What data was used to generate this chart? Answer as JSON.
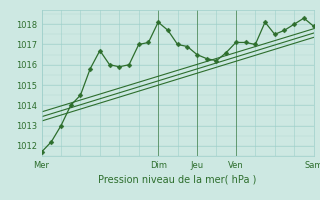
{
  "title": "",
  "xlabel": "Pression niveau de la mer( hPa )",
  "background_color": "#cde8e2",
  "plot_bg_color": "#cde8e2",
  "grid_color": "#9ecfca",
  "text_color": "#2d6e2d",
  "line_color": "#2d6e2d",
  "ylim": [
    1011.5,
    1018.7
  ],
  "xlim": [
    0,
    84
  ],
  "series1_x": [
    0,
    3,
    6,
    9,
    12,
    15,
    18,
    21,
    24,
    27,
    30,
    33,
    36,
    39,
    42,
    45,
    48,
    51,
    54,
    57,
    60,
    63,
    66,
    69,
    72,
    75,
    78,
    81,
    84
  ],
  "series1_y": [
    1011.7,
    1012.2,
    1013.0,
    1014.0,
    1014.5,
    1015.8,
    1016.7,
    1016.0,
    1015.9,
    1016.0,
    1017.0,
    1017.1,
    1018.1,
    1017.7,
    1017.0,
    1016.9,
    1016.5,
    1016.3,
    1016.2,
    1016.6,
    1017.1,
    1017.1,
    1017.0,
    1018.1,
    1017.5,
    1017.7,
    1018.0,
    1018.3,
    1017.9
  ],
  "series2_y": [
    1013.5,
    1014.2,
    1015.0,
    1015.6,
    1016.1,
    1016.6,
    1017.1,
    1017.7
  ],
  "series3_y": [
    1013.3,
    1014.0,
    1014.7,
    1015.35,
    1015.85,
    1016.4,
    1016.9,
    1017.5
  ],
  "series4_y": [
    1013.1,
    1013.8,
    1014.5,
    1015.1,
    1015.6,
    1016.2,
    1016.7,
    1017.3
  ],
  "straight_x": [
    0,
    12,
    24,
    36,
    48,
    60,
    72,
    84
  ],
  "yticks": [
    1012,
    1013,
    1014,
    1015,
    1016,
    1017,
    1018
  ],
  "xtick_positions": [
    0,
    36,
    48,
    60,
    84
  ],
  "xtick_labels": [
    "Mer",
    "Dim",
    "Jeu",
    "Ven",
    "Sam"
  ],
  "vline_positions": [
    36,
    48,
    60
  ],
  "marker_size": 2.5,
  "lw_main": 0.9,
  "lw_reg": 0.8
}
